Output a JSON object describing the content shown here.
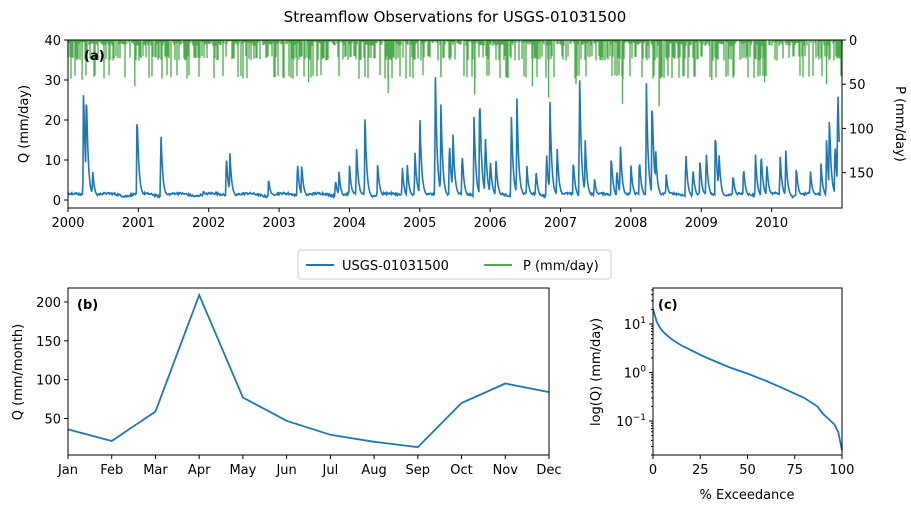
{
  "figure": {
    "title": "Streamflow Observations for USGS-01031500"
  },
  "chart_data": [
    {
      "id": "a",
      "panel_label": "(a)",
      "type": "line",
      "x_ticks": [
        "2000",
        "2001",
        "2002",
        "2003",
        "2004",
        "2005",
        "2006",
        "2007",
        "2008",
        "2009",
        "2010"
      ],
      "xlim": [
        2000,
        2011
      ],
      "ylabel_left": "Q (mm/day)",
      "ylim_left": [
        -2,
        40
      ],
      "yticks_left": [
        0,
        10,
        20,
        30,
        40
      ],
      "ylabel_right": "P (mm/day)",
      "ylim_right": [
        190,
        0
      ],
      "yticks_right": [
        0,
        50,
        100,
        150
      ],
      "series": [
        {
          "name": "USGS-01031500",
          "color": "#1f77b4",
          "axis": "left",
          "peaks": [
            [
              2000.22,
              28.5
            ],
            [
              2000.26,
              28.6
            ],
            [
              2000.35,
              7.0
            ],
            [
              2000.98,
              22.1
            ],
            [
              2001.32,
              17.2
            ],
            [
              2001.92,
              2.0
            ],
            [
              2002.25,
              11.0
            ],
            [
              2002.3,
              12.0
            ],
            [
              2002.85,
              5.0
            ],
            [
              2003.26,
              9.5
            ],
            [
              2003.32,
              9.0
            ],
            [
              2003.8,
              5.0
            ],
            [
              2003.85,
              7.0
            ],
            [
              2004.0,
              8.0
            ],
            [
              2004.1,
              13.0
            ],
            [
              2004.22,
              21.0
            ],
            [
              2004.4,
              9.0
            ],
            [
              2004.75,
              8.0
            ],
            [
              2004.82,
              9.0
            ],
            [
              2004.93,
              12.0
            ],
            [
              2005.0,
              21.0
            ],
            [
              2005.22,
              32.0
            ],
            [
              2005.3,
              24.0
            ],
            [
              2005.42,
              15.0
            ],
            [
              2005.47,
              17.0
            ],
            [
              2005.6,
              12.0
            ],
            [
              2005.77,
              21.5
            ],
            [
              2005.85,
              28.0
            ],
            [
              2005.93,
              17.0
            ],
            [
              2006.0,
              10.0
            ],
            [
              2006.08,
              10.0
            ],
            [
              2006.3,
              22.0
            ],
            [
              2006.38,
              25.0
            ],
            [
              2006.52,
              8.0
            ],
            [
              2006.65,
              7.0
            ],
            [
              2006.8,
              12.0
            ],
            [
              2006.85,
              24.0
            ],
            [
              2006.95,
              13.0
            ],
            [
              2007.18,
              10.0
            ],
            [
              2007.27,
              32.5
            ],
            [
              2007.35,
              15.0
            ],
            [
              2007.48,
              5.0
            ],
            [
              2007.72,
              11.0
            ],
            [
              2007.8,
              8.0
            ],
            [
              2007.85,
              14.0
            ],
            [
              2008.0,
              8.0
            ],
            [
              2008.12,
              10.0
            ],
            [
              2008.22,
              28.5
            ],
            [
              2008.3,
              27.0
            ],
            [
              2008.35,
              13.0
            ],
            [
              2008.5,
              6.0
            ],
            [
              2008.78,
              12.0
            ],
            [
              2008.88,
              8.0
            ],
            [
              2008.98,
              10.0
            ],
            [
              2009.07,
              12.0
            ],
            [
              2009.2,
              17.5
            ],
            [
              2009.25,
              12.0
            ],
            [
              2009.45,
              6.0
            ],
            [
              2009.6,
              8.0
            ],
            [
              2009.77,
              11.0
            ],
            [
              2009.85,
              12.0
            ],
            [
              2009.93,
              9.0
            ],
            [
              2010.12,
              11.0
            ],
            [
              2010.2,
              12.0
            ],
            [
              2010.35,
              8.0
            ],
            [
              2010.55,
              7.0
            ],
            [
              2010.7,
              9.0
            ],
            [
              2010.78,
              15.0
            ],
            [
              2010.82,
              21.5
            ],
            [
              2010.9,
              15.0
            ],
            [
              2010.94,
              29.5
            ]
          ]
        },
        {
          "name": "P (mm/day)",
          "color": "#4daa4d",
          "axis": "right",
          "note_peaks": [
            [
              2000.2,
              45.0
            ],
            [
              2000.95,
              52.0
            ],
            [
              2003.42,
              48.0
            ],
            [
              2004.55,
              60.0
            ],
            [
              2005.3,
              42.0
            ],
            [
              2005.78,
              62.0
            ],
            [
              2006.6,
              52.0
            ],
            [
              2006.83,
              65.0
            ],
            [
              2007.22,
              50.0
            ],
            [
              2007.88,
              72.0
            ],
            [
              2008.4,
              75.0
            ],
            [
              2009.15,
              45.0
            ],
            [
              2009.9,
              48.0
            ],
            [
              2010.78,
              50.0
            ]
          ]
        }
      ]
    },
    {
      "id": "b",
      "panel_label": "(b)",
      "type": "line",
      "categories": [
        "Jan",
        "Feb",
        "Mar",
        "Apr",
        "May",
        "Jun",
        "Jul",
        "Aug",
        "Sep",
        "Oct",
        "Nov",
        "Dec"
      ],
      "values": [
        36,
        21,
        59,
        209,
        77,
        47,
        29,
        20,
        13,
        70,
        95,
        84
      ],
      "ylabel": "Q (mm/month)",
      "ylim": [
        3,
        218
      ],
      "yticks": [
        50,
        100,
        150,
        200
      ],
      "series": [
        {
          "name": "USGS-01031500",
          "color": "#1f77b4"
        }
      ]
    },
    {
      "id": "c",
      "panel_label": "(c)",
      "type": "line",
      "xlabel": "% Exceedance",
      "ylabel": "log(Q) (mm/day)",
      "xlim": [
        0,
        100
      ],
      "xticks": [
        0,
        25,
        50,
        75,
        100
      ],
      "y_scale": "log",
      "ylim": [
        0.02,
        55
      ],
      "yticks": [
        "10^1",
        "10^0",
        "10^-1"
      ],
      "x": [
        0,
        1,
        2,
        4,
        6,
        10,
        15,
        20,
        25,
        30,
        40,
        50,
        60,
        70,
        80,
        87,
        90,
        93,
        96,
        98,
        100
      ],
      "y": [
        20,
        15,
        11,
        8,
        6.5,
        4.8,
        3.6,
        2.9,
        2.3,
        1.9,
        1.3,
        0.95,
        0.67,
        0.45,
        0.3,
        0.2,
        0.14,
        0.11,
        0.085,
        0.06,
        0.025
      ],
      "series": [
        {
          "name": "USGS-01031500",
          "color": "#1f77b4"
        }
      ]
    }
  ],
  "legend": {
    "items": [
      {
        "label": "USGS-01031500",
        "color": "#1f77b4"
      },
      {
        "label": "P (mm/day)",
        "color": "#4daa4d"
      }
    ]
  }
}
